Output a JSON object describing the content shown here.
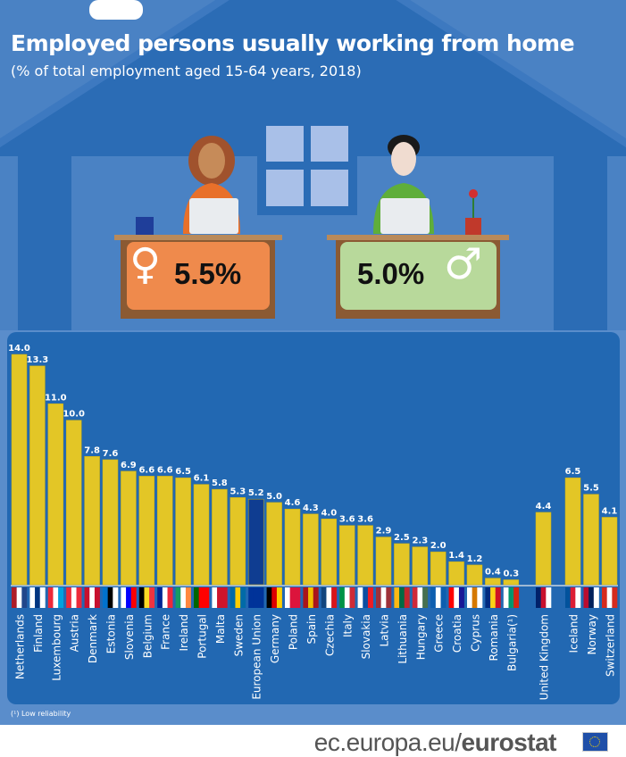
{
  "header": {
    "title": "Employed persons usually working from home",
    "subtitle": "(% of total employment aged 15-64 years, 2018)"
  },
  "women": {
    "symbol": "♀",
    "value": "5.5%",
    "color": "#ef8a4c"
  },
  "men": {
    "symbol": "♂",
    "value": "5.0%",
    "color": "#b8d99b"
  },
  "chart_data": {
    "type": "bar",
    "title": "Employed persons usually working from home",
    "subtitle": "(% of total employment aged 15-64 years, 2018)",
    "ylim": [
      0,
      14
    ],
    "grid": false,
    "bar_color": "#e3c626",
    "highlight_color": "#0f3d91",
    "categories": [
      "Netherlands",
      "Finland",
      "Luxembourg",
      "Austria",
      "Denmark",
      "Estonia",
      "Slovenia",
      "Belgium",
      "France",
      "Ireland",
      "Portugal",
      "Malta",
      "Sweden",
      "European Union",
      "Germany",
      "Poland",
      "Spain",
      "Czechia",
      "Italy",
      "Slovakia",
      "Latvia",
      "Lithuania",
      "Hungary",
      "Greece",
      "Croatia",
      "Cyprus",
      "Romania",
      "Bulgaria(¹)",
      "United Kingdom",
      "Iceland",
      "Norway",
      "Switzerland"
    ],
    "values": [
      14.0,
      13.3,
      11.0,
      10.0,
      7.8,
      7.6,
      6.9,
      6.6,
      6.6,
      6.5,
      6.1,
      5.8,
      5.3,
      5.2,
      5.0,
      4.6,
      4.3,
      4.0,
      3.6,
      3.6,
      2.9,
      2.5,
      2.3,
      2.0,
      1.4,
      1.2,
      0.4,
      0.3,
      4.4,
      6.5,
      5.5,
      4.1
    ],
    "labels": [
      "14.0",
      "13.3",
      "11.0",
      "10.0",
      "7.8",
      "7.6",
      "6.9",
      "6.6",
      "6.6",
      "6.5",
      "6.1",
      "5.8",
      "5.3",
      "5.2",
      "5.0",
      "4.6",
      "4.3",
      "4.0",
      "3.6",
      "3.6",
      "2.9",
      "2.5",
      "2.3",
      "2.0",
      "1.4",
      "1.2",
      "0.4",
      "0.3",
      "4.4",
      "6.5",
      "5.5",
      "4.1"
    ],
    "highlight": "European Union"
  },
  "footnote": "(¹) Low reliability",
  "footer": {
    "domain": "ec.europa.eu/",
    "brand": "eurostat"
  }
}
